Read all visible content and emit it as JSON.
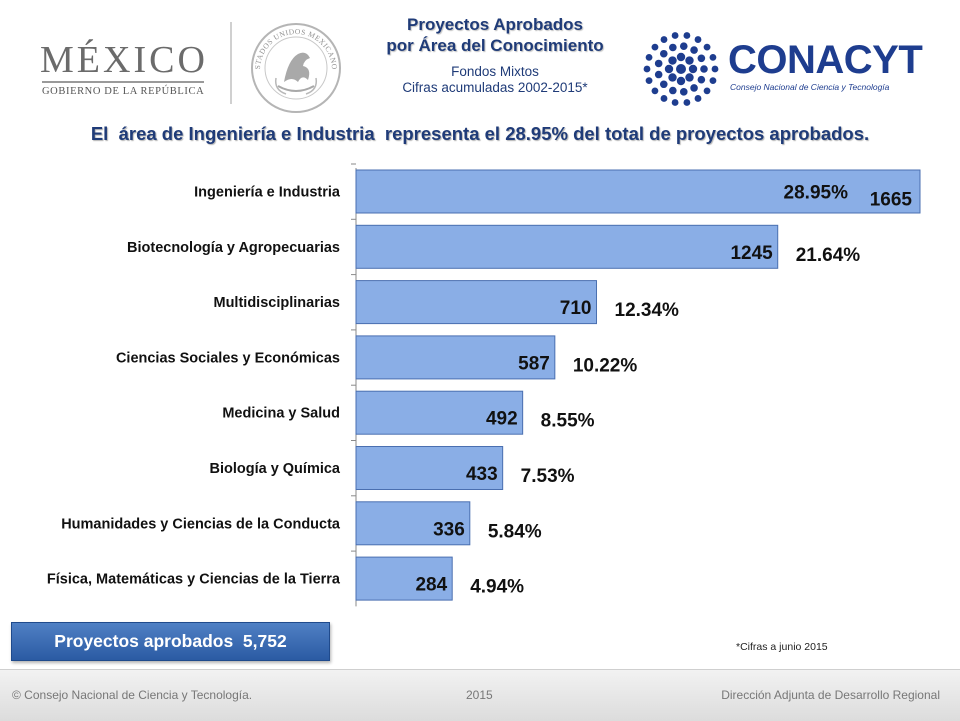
{
  "header": {
    "mexico_logo": {
      "word": "MÉXICO",
      "subtitle": "GOBIERNO DE LA REPÚBLICA"
    },
    "seal": {
      "icon": "national-seal-icon",
      "text": "ESTADOS UNIDOS MEXICANOS"
    },
    "title_line1": "Proyectos Aprobados",
    "title_line2": "por Área del Conocimiento",
    "subtitle_line1": "Fondos Mixtos",
    "subtitle_line2": "Cifras acumuladas 2002-2015*",
    "conacyt": {
      "word": "CONACYT",
      "subtitle": "Consejo Nacional de Ciencia y Tecnología",
      "icon": "conacyt-dots-icon"
    }
  },
  "headline": {
    "prefix": "El  área de ",
    "highlight": "Ingeniería e Industria",
    "suffix": "  representa el 28.95% del total de proyectos aprobados."
  },
  "colors": {
    "bar_fill": "#8aaee6",
    "bar_stroke": "#4a6fb0",
    "title_blue": "#1f3b78",
    "button_blue": "#3a6bb5"
  },
  "chart_data": {
    "type": "bar",
    "orientation": "horizontal",
    "categories": [
      "Ingeniería e Industria",
      "Biotecnología y Agropecuarias",
      "Multidisciplinarias",
      "Ciencias Sociales y Económicas",
      "Medicina y Salud",
      "Biología y Química",
      "Humanidades y Ciencias de la Conducta",
      "Física, Matemáticas y Ciencias de la Tierra"
    ],
    "values": [
      1665,
      1245,
      710,
      587,
      492,
      433,
      336,
      284
    ],
    "percent_labels": [
      "28.95%",
      "21.64%",
      "12.34%",
      "10.22%",
      "8.55%",
      "7.53%",
      "5.84%",
      "4.94%"
    ],
    "xlim": [
      0,
      1665
    ],
    "grid": false,
    "legend": "none"
  },
  "total": {
    "label": "Proyectos aprobados  5,752"
  },
  "footnote": "*Cifras a junio 2015",
  "footer": {
    "left": "© Consejo Nacional de Ciencia y Tecnología.",
    "middle": "2015",
    "right": "Dirección Adjunta de Desarrollo Regional"
  }
}
